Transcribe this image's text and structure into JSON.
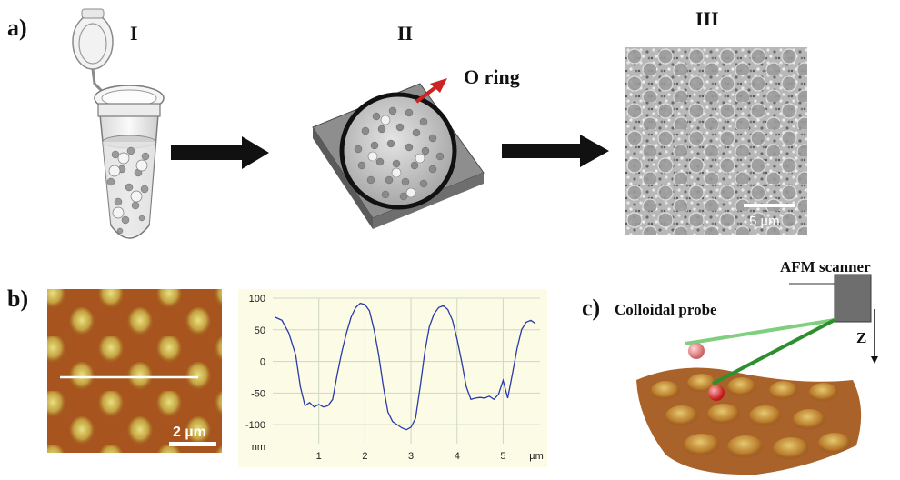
{
  "figure": {
    "panel_a": {
      "label": "a)",
      "steps": [
        "I",
        "II",
        "III"
      ],
      "oring_label": "O ring",
      "scalebar": "5 µm"
    },
    "panel_b": {
      "label": "b)",
      "scalebar": "2 µm"
    },
    "panel_c": {
      "label": "c)",
      "probe_label": "Colloidal probe",
      "scanner_label": "AFM scanner",
      "axis_label": "Z"
    }
  },
  "colors": {
    "arrow": "#111111",
    "oring_arrow": "#cc2222",
    "plot_line": "#2a3aa8",
    "plot_bg": "#fbfbe6",
    "cantilever": "#44aa44"
  },
  "chart_data": {
    "type": "line",
    "xlabel": "",
    "ylabel": "",
    "x_unit": "µm",
    "y_unit": "nm",
    "xlim": [
      0,
      5.8
    ],
    "ylim": [
      -130,
      100
    ],
    "xticks": [
      1,
      2,
      3,
      4,
      5
    ],
    "yticks": [
      100,
      50,
      0,
      -50,
      -100
    ],
    "grid": true,
    "series": [
      {
        "x": [
          0.05,
          0.2,
          0.35,
          0.5,
          0.6,
          0.7,
          0.8,
          0.9,
          1.0,
          1.1,
          1.2,
          1.3,
          1.4,
          1.5,
          1.6,
          1.7,
          1.8,
          1.9,
          2.0,
          2.1,
          2.2,
          2.3,
          2.4,
          2.5,
          2.6,
          2.7,
          2.8,
          2.9,
          3.0,
          3.1,
          3.2,
          3.3,
          3.4,
          3.5,
          3.6,
          3.7,
          3.8,
          3.9,
          4.0,
          4.1,
          4.2,
          4.3,
          4.4,
          4.5,
          4.6,
          4.7,
          4.8,
          4.9,
          5.0,
          5.1,
          5.2,
          5.3,
          5.4,
          5.5,
          5.6,
          5.7
        ],
        "y": [
          70,
          65,
          45,
          10,
          -40,
          -70,
          -65,
          -72,
          -68,
          -72,
          -70,
          -60,
          -20,
          15,
          45,
          70,
          85,
          92,
          90,
          80,
          50,
          10,
          -40,
          -80,
          -95,
          -100,
          -105,
          -108,
          -104,
          -90,
          -40,
          15,
          55,
          75,
          85,
          88,
          82,
          65,
          35,
          0,
          -40,
          -60,
          -58,
          -57,
          -58,
          -55,
          -60,
          -52,
          -30,
          -58,
          -20,
          20,
          50,
          62,
          65,
          60
        ]
      }
    ]
  }
}
